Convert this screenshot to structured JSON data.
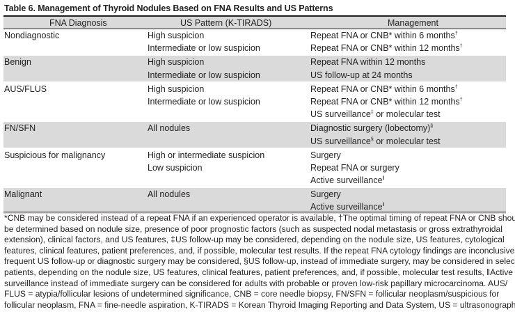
{
  "title": "Table 6. Management of Thyroid Nodules Based on FNA Results and US Patterns",
  "headers": {
    "col1": "FNA Diagnosis",
    "col2": "US Pattern (K-TIRADS)",
    "col3": "Management"
  },
  "rows": [
    {
      "shade": false,
      "dx": "Nondiagnostic",
      "us": "High suspicion",
      "mgmt": "Repeat FNA or CNB* within 6 months",
      "sup": "†"
    },
    {
      "shade": false,
      "dx": "",
      "us": "Intermediate or low suspicion",
      "mgmt": "Repeat FNA or CNB* within 12 months",
      "sup": "†"
    },
    {
      "shade": true,
      "dx": "Benign",
      "us": "High suspicion",
      "mgmt": "Repeat FNA within 12 months",
      "sup": ""
    },
    {
      "shade": true,
      "dx": "",
      "us": "Intermediate or low suspicion",
      "mgmt": "US follow-up at 24 months",
      "sup": ""
    },
    {
      "shade": false,
      "dx": "AUS/FLUS",
      "us": "High suspicion",
      "mgmt": "Repeat FNA or CNB* within 6 months",
      "sup": "†"
    },
    {
      "shade": false,
      "dx": "",
      "us": "Intermediate or low suspicion",
      "mgmt": "Repeat FNA or CNB* within 12 months",
      "sup": "†"
    },
    {
      "shade": false,
      "dx": "",
      "us": "",
      "mgmt": "US surveillance",
      "sup": "‡",
      "mgmt_after": " or molecular test"
    },
    {
      "shade": true,
      "dx": "FN/SFN",
      "us": "All nodules",
      "mgmt": "Diagnostic surgery (lobectomy)",
      "sup": "§"
    },
    {
      "shade": true,
      "dx": "",
      "us": "",
      "mgmt": "US surveillance",
      "sup": "§",
      "mgmt_after": " or molecular test"
    },
    {
      "shade": false,
      "dx": "Suspicious for malignancy",
      "us": "High or intermediate suspicion",
      "mgmt": "Surgery",
      "sup": ""
    },
    {
      "shade": false,
      "dx": "",
      "us": "Low suspicion",
      "mgmt": "Repeat FNA or surgery",
      "sup": ""
    },
    {
      "shade": false,
      "dx": "",
      "us": "",
      "mgmt": "Active surveillance",
      "sup": "ǁ"
    },
    {
      "shade": true,
      "dx": "Malignant",
      "us": "All nodules",
      "mgmt": "Surgery",
      "sup": ""
    },
    {
      "shade": true,
      "dx": "",
      "us": "",
      "mgmt": "Active surveillance",
      "sup": "ǁ"
    }
  ],
  "footnote_lines": [
    "*CNB may be considered instead of a repeat FNA if an experienced operator is available, †The optimal timing of repeat FNA or CNB should",
    "be determined based on nodule size, presence of poor prognostic factors (such as suspected nodal metastasis or gross extrathyroidal",
    "extension), clinical factors, and US features, ‡US follow-up may be considered, depending on the nodule size, US features, cytological",
    "features, clinical features, patient preferences, and, if possible, molecular test results. If the repeat FNA cytology findings are inconclusive,",
    "frequent US follow-up or diagnostic surgery may be considered, §US follow-up, instead of immediate surgery, may be considered in selected",
    "patients, depending on the nodule size, US features, clinical features, patient preferences, and, if possible, molecular test results, ǁActive",
    "surveillance instead of immediate surgery can be considered for adults with probable or proven low-risk papillary microcarcinoma. AUS/",
    "FLUS = atypia/follicular lesions of undetermined significance, CNB = core needle biopsy, FN/SFN = follicular neoplasm/suspicious for",
    "follicular neoplasm, FNA = fine-needle aspiration, K-TIRADS = Korean Thyroid Imaging Reporting and Data System, US = ultrasonography"
  ]
}
